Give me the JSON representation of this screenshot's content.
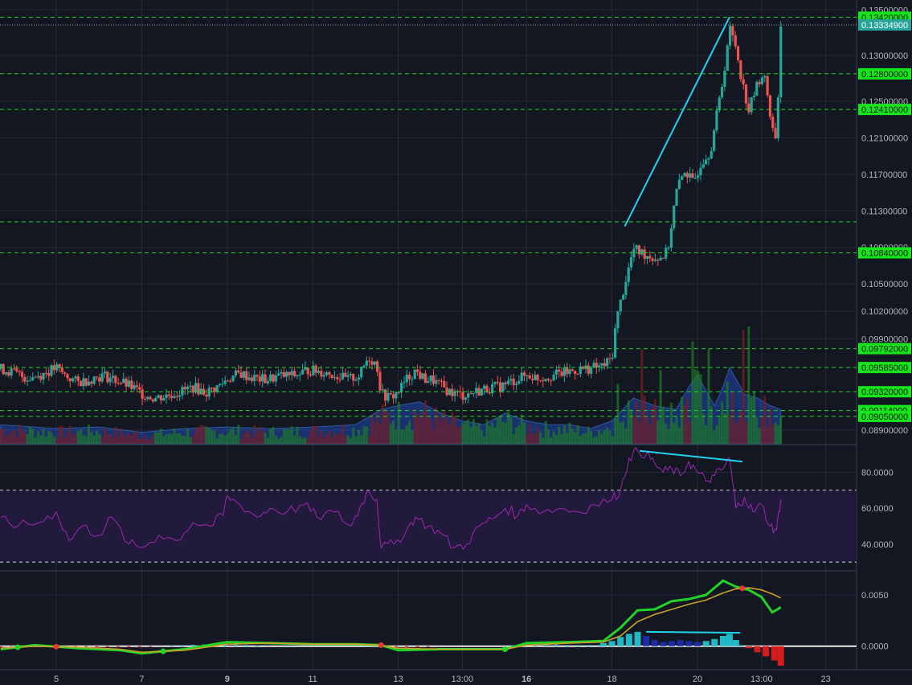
{
  "chart_data": [
    {
      "type": "candlestick",
      "panel": "price",
      "x_ticks": [
        {
          "label": "5",
          "bold": false
        },
        {
          "label": "7",
          "bold": false
        },
        {
          "label": "9",
          "bold": true
        },
        {
          "label": "11",
          "bold": false
        },
        {
          "label": "13",
          "bold": false
        },
        {
          "label": "13:00",
          "bold": false
        },
        {
          "label": "16",
          "bold": true
        },
        {
          "label": "18",
          "bold": false
        },
        {
          "label": "20",
          "bold": false
        },
        {
          "label": "13:00",
          "bold": false
        },
        {
          "label": "23",
          "bold": false
        }
      ],
      "y_ticks": [
        "0.13500000",
        "0.13000000",
        "0.12500000",
        "0.12100000",
        "0.11700000",
        "0.11300000",
        "0.10900000",
        "0.10500000",
        "0.10200000",
        "0.09900000",
        "0.08900000"
      ],
      "ylim": [
        0.0875,
        0.1352
      ],
      "horizontal_levels": [
        {
          "value": 0.1342,
          "label": "0.13420000",
          "labeled": true
        },
        {
          "value": 0.128,
          "label": "0.12800000",
          "labeled": true
        },
        {
          "value": 0.1241,
          "label": "0.12410000",
          "labeled": true
        },
        {
          "value": 0.1118,
          "label": "",
          "labeled": false
        },
        {
          "value": 0.1084,
          "label": "0.10840000",
          "labeled": true
        },
        {
          "value": 0.09792,
          "label": "0.09792000",
          "labeled": true
        },
        {
          "value": 0.09585,
          "label": "0.09585000",
          "labeled": true
        },
        {
          "value": 0.0932,
          "label": "0.09320000",
          "labeled": true
        },
        {
          "value": 0.09114,
          "label": "0.09114000",
          "labeled": true
        },
        {
          "value": 0.0905,
          "label": "0.09050000",
          "labeled": true
        }
      ],
      "last_price": {
        "value": 0.133349,
        "label": "0.13334900"
      },
      "trend_line": {
        "from": [
          18.3,
          0.1113
        ],
        "to": [
          20.75,
          0.1342
        ]
      },
      "close_path": [
        [
          3.7,
          0.0957
        ],
        [
          4.0,
          0.0953
        ],
        [
          4.3,
          0.0947
        ],
        [
          4.6,
          0.095
        ],
        [
          5.0,
          0.0958
        ],
        [
          5.2,
          0.095
        ],
        [
          5.5,
          0.0942
        ],
        [
          5.8,
          0.0946
        ],
        [
          6.1,
          0.095
        ],
        [
          6.5,
          0.0943
        ],
        [
          6.8,
          0.0936
        ],
        [
          7.0,
          0.093
        ],
        [
          7.3,
          0.0925
        ],
        [
          7.6,
          0.0928
        ],
        [
          7.9,
          0.0932
        ],
        [
          8.2,
          0.0937
        ],
        [
          8.5,
          0.0931
        ],
        [
          8.8,
          0.0938
        ],
        [
          9.0,
          0.0946
        ],
        [
          9.3,
          0.0952
        ],
        [
          9.6,
          0.0947
        ],
        [
          9.9,
          0.0945
        ],
        [
          10.2,
          0.0949
        ],
        [
          10.6,
          0.095
        ],
        [
          10.9,
          0.0956
        ],
        [
          11.2,
          0.0954
        ],
        [
          11.5,
          0.0951
        ],
        [
          11.8,
          0.0945
        ],
        [
          12.1,
          0.095
        ],
        [
          12.3,
          0.097
        ],
        [
          12.5,
          0.0962
        ],
        [
          12.6,
          0.093
        ],
        [
          12.8,
          0.0925
        ],
        [
          13.0,
          0.0932
        ],
        [
          13.2,
          0.0946
        ],
        [
          13.4,
          0.0955
        ],
        [
          13.6,
          0.0946
        ],
        [
          13.8,
          0.0945
        ],
        [
          14.0,
          0.0938
        ],
        [
          14.2,
          0.0932
        ],
        [
          14.5,
          0.0928
        ],
        [
          14.8,
          0.0932
        ],
        [
          15.1,
          0.0936
        ],
        [
          15.4,
          0.0938
        ],
        [
          15.7,
          0.0944
        ],
        [
          16.0,
          0.095
        ],
        [
          16.3,
          0.0947
        ],
        [
          16.6,
          0.095
        ],
        [
          16.9,
          0.0953
        ],
        [
          17.2,
          0.0956
        ],
        [
          17.5,
          0.0958
        ],
        [
          17.8,
          0.096
        ],
        [
          18.0,
          0.0969
        ],
        [
          18.1,
          0.101
        ],
        [
          18.3,
          0.105
        ],
        [
          18.5,
          0.1088
        ],
        [
          18.7,
          0.1084
        ],
        [
          18.9,
          0.108
        ],
        [
          19.1,
          0.1078
        ],
        [
          19.3,
          0.1085
        ],
        [
          19.5,
          0.115
        ],
        [
          19.7,
          0.1175
        ],
        [
          19.9,
          0.116
        ],
        [
          20.1,
          0.1185
        ],
        [
          20.3,
          0.1195
        ],
        [
          20.5,
          0.1248
        ],
        [
          20.6,
          0.1275
        ],
        [
          20.75,
          0.133
        ],
        [
          20.9,
          0.131
        ],
        [
          21.05,
          0.127
        ],
        [
          21.2,
          0.124
        ],
        [
          21.35,
          0.1262
        ],
        [
          21.5,
          0.128
        ],
        [
          21.6,
          0.127
        ],
        [
          21.75,
          0.122
        ],
        [
          21.85,
          0.121
        ],
        [
          21.95,
          0.1333
        ]
      ],
      "volume_profile": [
        [
          3.7,
          0.25
        ],
        [
          5.0,
          0.2
        ],
        [
          6.0,
          0.22
        ],
        [
          7.0,
          0.15
        ],
        [
          8.0,
          0.2
        ],
        [
          9.0,
          0.22
        ],
        [
          10.0,
          0.2
        ],
        [
          11.0,
          0.22
        ],
        [
          12.0,
          0.25
        ],
        [
          12.6,
          0.45
        ],
        [
          13.0,
          0.5
        ],
        [
          13.5,
          0.55
        ],
        [
          14.0,
          0.4
        ],
        [
          14.5,
          0.3
        ],
        [
          15.0,
          0.25
        ],
        [
          15.5,
          0.4
        ],
        [
          16.0,
          0.3
        ],
        [
          16.5,
          0.25
        ],
        [
          17.0,
          0.25
        ],
        [
          17.5,
          0.2
        ],
        [
          18.0,
          0.3
        ],
        [
          18.5,
          0.6
        ],
        [
          19.0,
          0.5
        ],
        [
          19.5,
          0.45
        ],
        [
          19.8,
          0.75
        ],
        [
          20.0,
          0.9
        ],
        [
          20.2,
          0.7
        ],
        [
          20.4,
          0.5
        ],
        [
          20.6,
          0.75
        ],
        [
          20.75,
          1.0
        ],
        [
          20.9,
          0.85
        ],
        [
          21.1,
          0.65
        ],
        [
          21.4,
          0.6
        ],
        [
          21.7,
          0.5
        ],
        [
          21.95,
          0.45
        ]
      ]
    },
    {
      "type": "line",
      "panel": "rsi",
      "y_ticks": [
        "80.0000",
        "60.0000",
        "40.0000"
      ],
      "ylim": [
        26,
        95
      ],
      "band": [
        30,
        70
      ],
      "x": [
        3.7,
        4.1,
        4.6,
        5.0,
        5.3,
        5.6,
        6.0,
        6.3,
        6.7,
        7.0,
        7.4,
        7.8,
        8.2,
        8.6,
        8.9,
        9.0,
        9.3,
        9.7,
        10.0,
        10.4,
        10.8,
        11.1,
        11.5,
        11.9,
        12.1,
        12.3,
        12.5,
        12.6,
        12.9,
        13.2,
        13.4,
        13.7,
        14.0,
        14.3,
        14.6,
        14.9,
        15.2,
        15.5,
        15.8,
        16.0,
        16.4,
        16.8,
        17.2,
        17.6,
        18.0,
        18.2,
        18.4,
        18.6,
        18.8,
        19.0,
        19.2,
        19.4,
        19.6,
        19.8,
        20.0,
        20.2,
        20.4,
        20.6,
        20.75,
        20.9,
        21.1,
        21.3,
        21.5,
        21.7,
        21.85,
        21.95
      ],
      "values": [
        55,
        50,
        52,
        58,
        42,
        50,
        45,
        55,
        40,
        38,
        45,
        42,
        52,
        50,
        56,
        67,
        62,
        55,
        60,
        58,
        62,
        55,
        58,
        50,
        60,
        70,
        65,
        38,
        40,
        48,
        55,
        50,
        46,
        38,
        40,
        50,
        54,
        60,
        56,
        62,
        58,
        60,
        58,
        62,
        65,
        70,
        88,
        92,
        90,
        85,
        80,
        82,
        78,
        86,
        80,
        75,
        78,
        82,
        88,
        60,
        66,
        58,
        62,
        50,
        48,
        65
      ]
    },
    {
      "type": "line",
      "panel": "macd",
      "y_ticks": [
        "0.0050",
        "0.0000"
      ],
      "ylim": [
        -0.0023,
        0.0072
      ],
      "series": [
        {
          "role": "macd",
          "color": "#22d32a",
          "x": [
            3.7,
            4.5,
            5.5,
            6.5,
            7.0,
            8.0,
            9.0,
            10.0,
            11.0,
            12.0,
            12.6,
            13.0,
            14.0,
            15.0,
            15.5,
            16.0,
            17.0,
            17.8,
            18.2,
            18.6,
            19.0,
            19.4,
            19.8,
            20.2,
            20.6,
            20.9,
            21.2,
            21.5,
            21.75,
            21.95
          ],
          "values": [
            -0.0003,
            0.0001,
            -0.0002,
            -0.0004,
            -0.0007,
            -0.0003,
            0.0004,
            0.0003,
            0.0002,
            0.0002,
            0.0001,
            -0.0004,
            -0.0003,
            -0.0003,
            -0.0003,
            0.0003,
            0.0004,
            0.0005,
            0.0018,
            0.0035,
            0.0036,
            0.0044,
            0.0046,
            0.005,
            0.0064,
            0.0058,
            0.0055,
            0.0048,
            0.0033,
            0.0038
          ]
        },
        {
          "role": "signal",
          "color": "#c9a227",
          "x": [
            3.7,
            4.5,
            5.5,
            6.5,
            7.0,
            8.0,
            9.0,
            10.0,
            11.0,
            12.0,
            12.6,
            13.0,
            14.0,
            15.0,
            15.5,
            16.0,
            17.0,
            17.8,
            18.2,
            18.6,
            19.0,
            19.4,
            19.8,
            20.2,
            20.6,
            20.9,
            21.2,
            21.5,
            21.75,
            21.95
          ],
          "values": [
            -0.0002,
            0.0,
            -0.0001,
            -0.0003,
            -0.0006,
            -0.0004,
            0.0002,
            0.0003,
            0.0002,
            0.0002,
            0.0001,
            -0.0002,
            -0.0003,
            -0.0003,
            -0.0003,
            0.0001,
            0.0003,
            0.0004,
            0.001,
            0.0024,
            0.0031,
            0.0036,
            0.0041,
            0.0045,
            0.0052,
            0.0056,
            0.0057,
            0.0055,
            0.0051,
            0.0047
          ]
        }
      ],
      "histogram_x": [
        17.8,
        18.0,
        18.2,
        18.4,
        18.6,
        18.8,
        19.0,
        19.2,
        19.4,
        19.6,
        19.8,
        20.0,
        20.2,
        20.4,
        20.6,
        20.75,
        20.9,
        21.0,
        21.2,
        21.4,
        21.6,
        21.8,
        21.95
      ],
      "histogram": [
        0.0003,
        0.0005,
        0.0009,
        0.0012,
        0.0014,
        0.001,
        0.0006,
        0.0004,
        0.0005,
        0.0006,
        0.0005,
        0.0004,
        0.0005,
        0.0007,
        0.001,
        0.0012,
        0.0006,
        0.0001,
        -0.0002,
        -0.0006,
        -0.001,
        -0.0014,
        -0.0019
      ],
      "divergence_line": {
        "from": [
          18.8,
          0.0014
        ],
        "to": [
          21.0,
          0.0013
        ]
      }
    }
  ],
  "colors": {
    "background": "#131722",
    "grid": "#262a36",
    "level": "#21d329",
    "level_label_bg": "#15e51a",
    "trend": "#22d3ee",
    "bull": "#26a69a",
    "bear": "#ef5350",
    "rsi_line": "#9c27b0",
    "rsi_band": "#221a3c",
    "axis_text": "#b2b5be"
  }
}
